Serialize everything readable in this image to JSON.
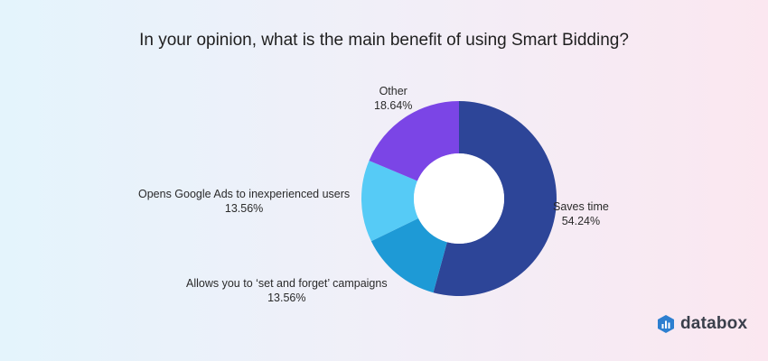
{
  "chart_data": {
    "type": "pie",
    "donut": true,
    "title": "In your opinion, what is the main benefit of using Smart Bidding?",
    "slices": [
      {
        "label": "Saves time",
        "value": 54.24,
        "value_text": "54.24%",
        "color": "#2d4598"
      },
      {
        "label": "Allows you to ‘set and forget’ campaigns",
        "value": 13.56,
        "value_text": "13.56%",
        "color": "#1e9ad6"
      },
      {
        "label": "Opens Google Ads to inexperienced users",
        "value": 13.56,
        "value_text": "13.56%",
        "color": "#56cbf6"
      },
      {
        "label": "Other",
        "value": 18.64,
        "value_text": "18.64%",
        "color": "#7b45e6"
      }
    ]
  },
  "brand": {
    "name": "databox",
    "icon": "databox-logo-icon",
    "color": "#2d7fd0"
  }
}
